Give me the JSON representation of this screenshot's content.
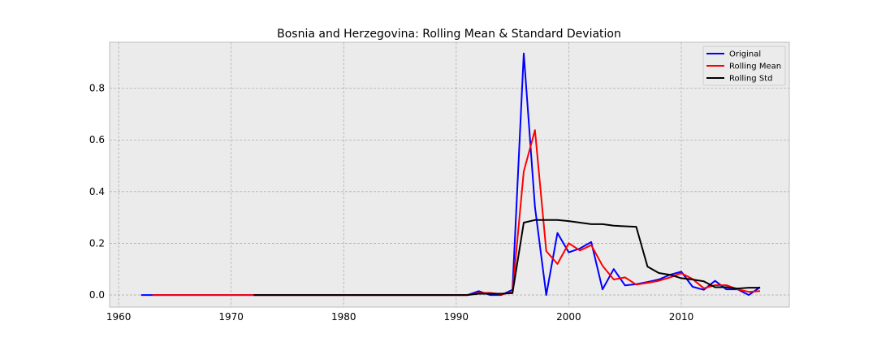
{
  "chart_data": {
    "type": "line",
    "title": "Bosnia and Herzegovina: Rolling Mean & Standard Deviation",
    "xlabel": "",
    "ylabel": "",
    "xlim": [
      1959.2,
      2019.6
    ],
    "ylim": [
      -0.047,
      0.978
    ],
    "xticks": [
      1960,
      1970,
      1980,
      1990,
      2000,
      2010
    ],
    "xtick_labels": [
      "1960",
      "1970",
      "1980",
      "1990",
      "2000",
      "2010"
    ],
    "yticks": [
      0.0,
      0.2,
      0.4,
      0.6,
      0.8
    ],
    "ytick_labels": [
      "0.0",
      "0.2",
      "0.4",
      "0.6",
      "0.8"
    ],
    "grid": true,
    "legend_position": "top-right",
    "background": "#ebebeb",
    "series": [
      {
        "name": "Original",
        "color": "#0000ff",
        "x": [
          1962,
          1963,
          1964,
          1965,
          1966,
          1967,
          1968,
          1969,
          1970,
          1971,
          1972,
          1973,
          1974,
          1975,
          1976,
          1977,
          1978,
          1979,
          1980,
          1981,
          1982,
          1983,
          1984,
          1985,
          1986,
          1987,
          1988,
          1989,
          1990,
          1991,
          1992,
          1993,
          1994,
          1995,
          1996,
          1997,
          1998,
          1999,
          2000,
          2001,
          2002,
          2003,
          2004,
          2005,
          2006,
          2007,
          2008,
          2009,
          2010,
          2011,
          2012,
          2013,
          2014,
          2015,
          2016,
          2017
        ],
        "y": [
          0,
          0,
          0,
          0,
          0,
          0,
          0,
          0,
          0,
          0,
          0,
          0,
          0,
          0,
          0,
          0,
          0,
          0,
          0,
          0,
          0,
          0,
          0,
          0,
          0,
          0,
          0,
          0,
          0,
          0,
          0.015,
          0,
          0,
          0.02,
          0.935,
          0.34,
          0,
          0.24,
          0.165,
          0.18,
          0.205,
          0.022,
          0.1,
          0.037,
          0.042,
          0.05,
          0.06,
          0.078,
          0.09,
          0.032,
          0.02,
          0.055,
          0.022,
          0.022,
          0.0,
          0.03
        ]
      },
      {
        "name": "Rolling Mean",
        "color": "#ff0000",
        "x": [
          1963,
          1964,
          1965,
          1966,
          1967,
          1968,
          1969,
          1970,
          1971,
          1972,
          1973,
          1974,
          1975,
          1976,
          1977,
          1978,
          1979,
          1980,
          1981,
          1982,
          1983,
          1984,
          1985,
          1986,
          1987,
          1988,
          1989,
          1990,
          1991,
          1992,
          1993,
          1994,
          1995,
          1996,
          1997,
          1998,
          1999,
          2000,
          2001,
          2002,
          2003,
          2004,
          2005,
          2006,
          2007,
          2008,
          2009,
          2010,
          2011,
          2012,
          2013,
          2014,
          2015,
          2016,
          2017
        ],
        "y": [
          0,
          0,
          0,
          0,
          0,
          0,
          0,
          0,
          0,
          0,
          0,
          0,
          0,
          0,
          0,
          0,
          0,
          0,
          0,
          0,
          0,
          0,
          0,
          0,
          0,
          0,
          0,
          0,
          0,
          0.008,
          0.008,
          0.003,
          0.01,
          0.478,
          0.638,
          0.17,
          0.12,
          0.2,
          0.172,
          0.193,
          0.113,
          0.06,
          0.068,
          0.04,
          0.047,
          0.055,
          0.068,
          0.084,
          0.062,
          0.026,
          0.038,
          0.038,
          0.022,
          0.012,
          0.015
        ]
      },
      {
        "name": "Rolling Std",
        "color": "#000000",
        "x": [
          1972,
          1973,
          1974,
          1975,
          1976,
          1977,
          1978,
          1979,
          1980,
          1981,
          1982,
          1983,
          1984,
          1985,
          1986,
          1987,
          1988,
          1989,
          1990,
          1991,
          1992,
          1993,
          1994,
          1995,
          1996,
          1997,
          1998,
          1999,
          2000,
          2001,
          2002,
          2003,
          2004,
          2005,
          2006,
          2007,
          2008,
          2009,
          2010,
          2011,
          2012,
          2013,
          2014,
          2015,
          2016,
          2017
        ],
        "y": [
          0,
          0,
          0,
          0,
          0,
          0,
          0,
          0,
          0,
          0,
          0,
          0,
          0,
          0,
          0,
          0,
          0,
          0,
          0,
          0,
          0.005,
          0.005,
          0.005,
          0.007,
          0.28,
          0.29,
          0.29,
          0.29,
          0.286,
          0.28,
          0.274,
          0.274,
          0.268,
          0.266,
          0.264,
          0.11,
          0.085,
          0.078,
          0.065,
          0.06,
          0.053,
          0.03,
          0.03,
          0.025,
          0.028,
          0.028
        ]
      }
    ]
  }
}
